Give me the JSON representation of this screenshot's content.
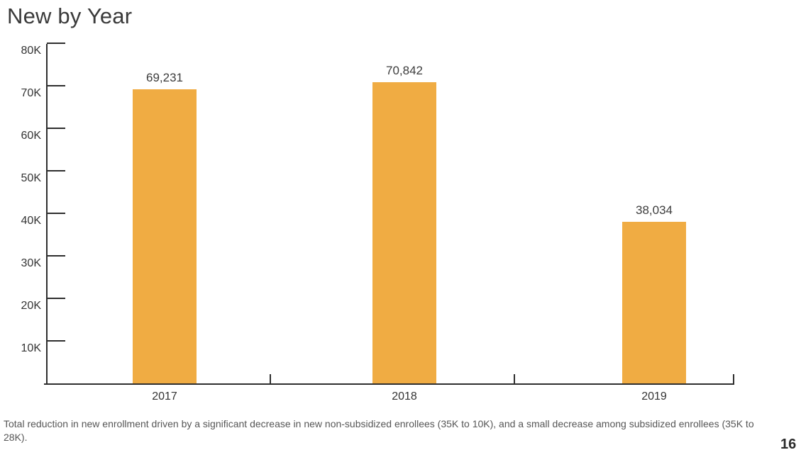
{
  "chart_data": {
    "type": "bar",
    "title": "New by Year",
    "categories": [
      "2017",
      "2018",
      "2019"
    ],
    "values": [
      69231,
      70842,
      38034
    ],
    "value_labels": [
      "69,231",
      "70,842",
      "38,034"
    ],
    "y_ticks": [
      "10K",
      "20K",
      "30K",
      "40K",
      "50K",
      "60K",
      "70K",
      "80K"
    ],
    "y_tick_values": [
      10000,
      20000,
      30000,
      40000,
      50000,
      60000,
      70000,
      80000
    ],
    "ylim": [
      0,
      80000
    ],
    "xlabel": "",
    "ylabel": "",
    "grid": false,
    "legend_position": "none",
    "bar_color": "#F0AC43",
    "axis_color": "#2E2E2E"
  },
  "footnote": "Total reduction in new enrollment driven by a significant decrease in new non-subsidized enrollees (35K to 10K), and a small decrease among subsidized enrollees (35K to 28K).",
  "page_number": "16"
}
